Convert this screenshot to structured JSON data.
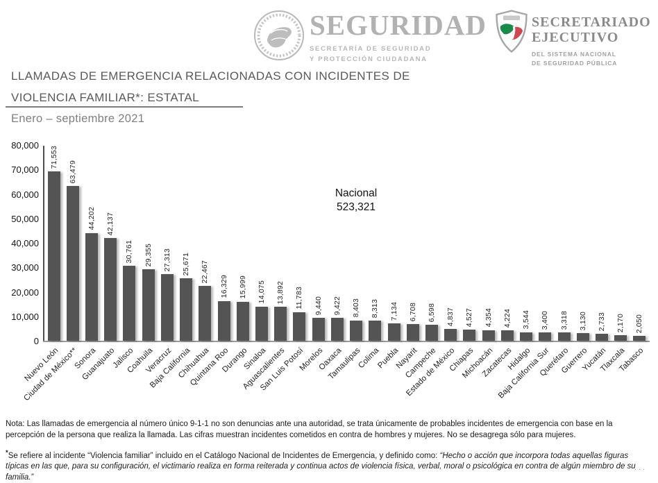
{
  "header": {
    "seguridad": {
      "name": "SEGURIDAD",
      "dept_line1": "SECRETARÍA DE SEGURIDAD",
      "dept_line2": "Y PROTECCIÓN CIUDADANA"
    },
    "secretariado": {
      "title_line1": "SECRETARIADO",
      "title_line2": "EJECUTIVO",
      "dept_line1": "DEL SISTEMA NACIONAL",
      "dept_line2": "DE SEGURIDAD PÚBLICA"
    }
  },
  "title": {
    "line1": "LLAMADAS DE EMERGENCIA RELACIONADAS CON INCIDENTES DE",
    "line2": "VIOLENCIA FAMILIAR*: ESTATAL",
    "period": "Enero – septiembre 2021"
  },
  "chart_data": {
    "type": "bar",
    "title": "LLAMADAS DE EMERGENCIA RELACIONADAS CON INCIDENTES DE VIOLENCIA FAMILIAR*: ESTATAL — Enero – septiembre 2021",
    "categories": [
      "Nuevo León",
      "Ciudad de México**",
      "Sonora",
      "Guanajuato",
      "Jalisco",
      "Coahuila",
      "Veracruz",
      "Baja California",
      "Chihuahua",
      "Quintana Roo",
      "Durango",
      "Sinaloa",
      "Aguascalientes",
      "San Luis Potosí",
      "Morelos",
      "Oaxaca",
      "Tamaulipas",
      "Colima",
      "Puebla",
      "Nayarit",
      "Campeche",
      "Estado de México",
      "Chiapas",
      "Michoacán",
      "Zacatecas",
      "Hidalgo",
      "Baja California Sur",
      "Querétaro",
      "Guerrero",
      "Yucatán",
      "Tlaxcala",
      "Tabasco"
    ],
    "values": [
      71553,
      63479,
      44202,
      42137,
      30761,
      29355,
      27313,
      25671,
      22467,
      16329,
      15999,
      14075,
      13892,
      11783,
      9440,
      9422,
      8403,
      8313,
      7134,
      6708,
      6598,
      4837,
      4527,
      4354,
      4224,
      3544,
      3400,
      3318,
      3130,
      2733,
      2170,
      2050
    ],
    "value_labels": [
      "71,553",
      "63,479",
      "44,202",
      "42,137",
      "30,761",
      "29,355",
      "27,313",
      "25,671",
      "22,467",
      "16,329",
      "15,999",
      "14,075",
      "13,892",
      "11,783",
      "9,440",
      "9,422",
      "8,403",
      "8,313",
      "7,134",
      "6,708",
      "6,598",
      "4,837",
      "4,527",
      "4,354",
      "4,224",
      "3,544",
      "3,400",
      "3,318",
      "3,130",
      "2,733",
      "2,170",
      "2,050"
    ],
    "yticks": [
      "80,000",
      "70,000",
      "60,000",
      "50,000",
      "40,000",
      "30,000",
      "20,000",
      "10,000",
      "0"
    ],
    "ylim": [
      0,
      80000
    ],
    "xlabel": "",
    "ylabel": "",
    "grid": false,
    "legend_position": "none",
    "bar_color": "#545454",
    "annotation": {
      "label": "Nacional",
      "value": "523,321"
    }
  },
  "footnotes": {
    "note": "Nota: Las llamadas de emergencia al número único 9-1-1 no son denuncias ante una autoridad, se trata únicamente de probables incidentes de emergencia con base en la percepción de la persona que realiza la llamada. Las cifras muestran incidentes cometidos en contra de hombres y mujeres. No se desagrega sólo para mujeres.",
    "asterisk": "*",
    "definition_intro": "Se refiere al incidente “Violencia familiar” incluido en el Catálogo Nacional de Incidentes de Emergencia, y definido como: ",
    "definition_quote": "“Hecho o acción  que incorpora todas aquellas figuras típicas en las que, para su configuración, el victimario realiza en forma reiterada y continua actos de violencia física, verbal, moral o psicológica en contra de algún miembro de su familia.”"
  },
  "page_edge_marks": "..."
}
